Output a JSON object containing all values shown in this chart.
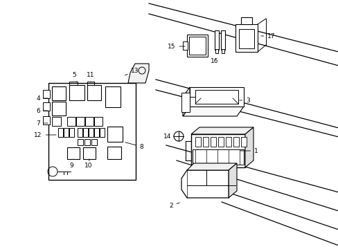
{
  "background_color": "#ffffff",
  "line_color": "#000000",
  "lw": 0.7,
  "fs": 6.5,
  "figsize": [
    4.89,
    3.6
  ],
  "dpi": 100
}
